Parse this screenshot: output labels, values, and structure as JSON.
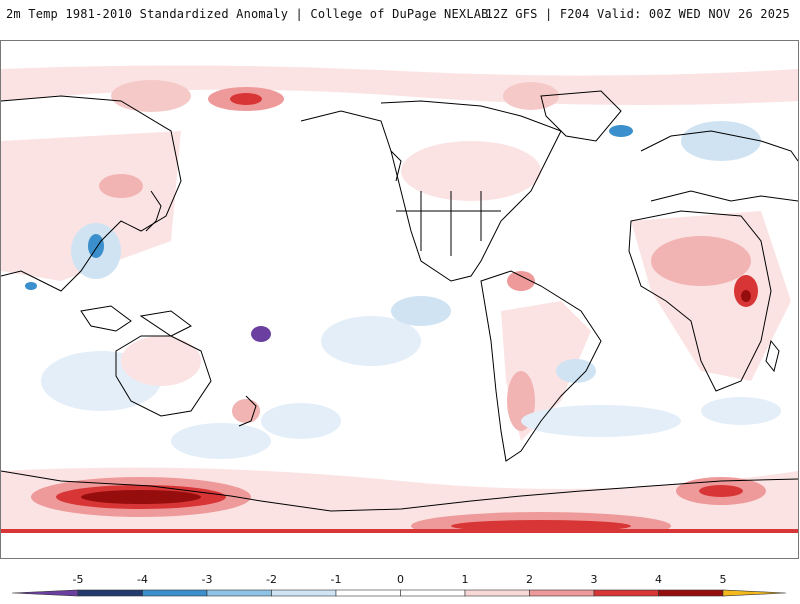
{
  "header": {
    "title_left": "2m Temp 1981-2010 Standardized Anomaly | College of DuPage NEXLAB",
    "title_right": "12Z GFS | F204 Valid: 00Z WED NOV 26 2025"
  },
  "map": {
    "projection": "equirectangular, Pacific-centered",
    "coastline_color": "#000000",
    "background_color": "#ffffff"
  },
  "colorbar": {
    "labels": [
      "-5",
      "-4",
      "-3",
      "-2",
      "-1",
      "0",
      "1",
      "2",
      "3",
      "4",
      "5"
    ],
    "colors": {
      "lt_-5": "#6b3fa0",
      "-5_-4": "#223a6e",
      "-4_-3": "#3a8fcc",
      "-3_-2": "#8ec3e6",
      "-2_-1": "#cfe3f3",
      "-1_0": "#ffffff",
      "0_1": "#ffffff",
      "1_2": "#f8d7d7",
      "2_3": "#ee9a9a",
      "3_4": "#d83636",
      "4_5": "#960d0d",
      "gt_5": "#f2b81c"
    }
  }
}
